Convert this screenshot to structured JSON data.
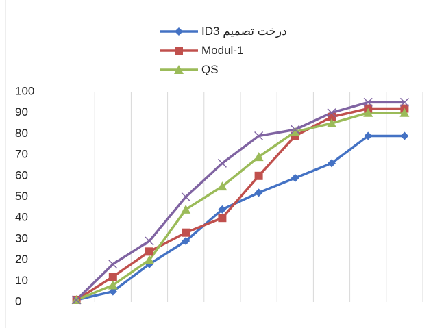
{
  "chart_data": {
    "type": "line",
    "categories": [
      null,
      null,
      null,
      null,
      null,
      null,
      null,
      null,
      null,
      null
    ],
    "series": [
      {
        "name": "درخت تصمیم ID3",
        "color": "#4472c4",
        "marker": "diamond",
        "values": [
          1,
          5,
          18,
          29,
          44,
          52,
          59,
          66,
          79,
          79
        ]
      },
      {
        "name": "Modul-1",
        "color": "#c0504d",
        "marker": "square",
        "values": [
          1,
          12,
          24,
          33,
          40,
          60,
          79,
          88,
          92,
          92
        ]
      },
      {
        "name": "QS",
        "color": "#9bbb59",
        "marker": "triangle",
        "values": [
          1,
          8,
          20,
          44,
          55,
          69,
          81,
          85,
          90,
          90
        ]
      },
      {
        "color": "#8064a2",
        "marker": "x",
        "values": [
          1,
          18,
          29,
          50,
          66,
          79,
          82,
          90,
          95,
          95
        ]
      }
    ],
    "ylim": [
      0,
      100
    ],
    "yticks": [
      0,
      10,
      20,
      30,
      40,
      50,
      60,
      70,
      80,
      90,
      100
    ],
    "legend": "top",
    "grid": true
  }
}
